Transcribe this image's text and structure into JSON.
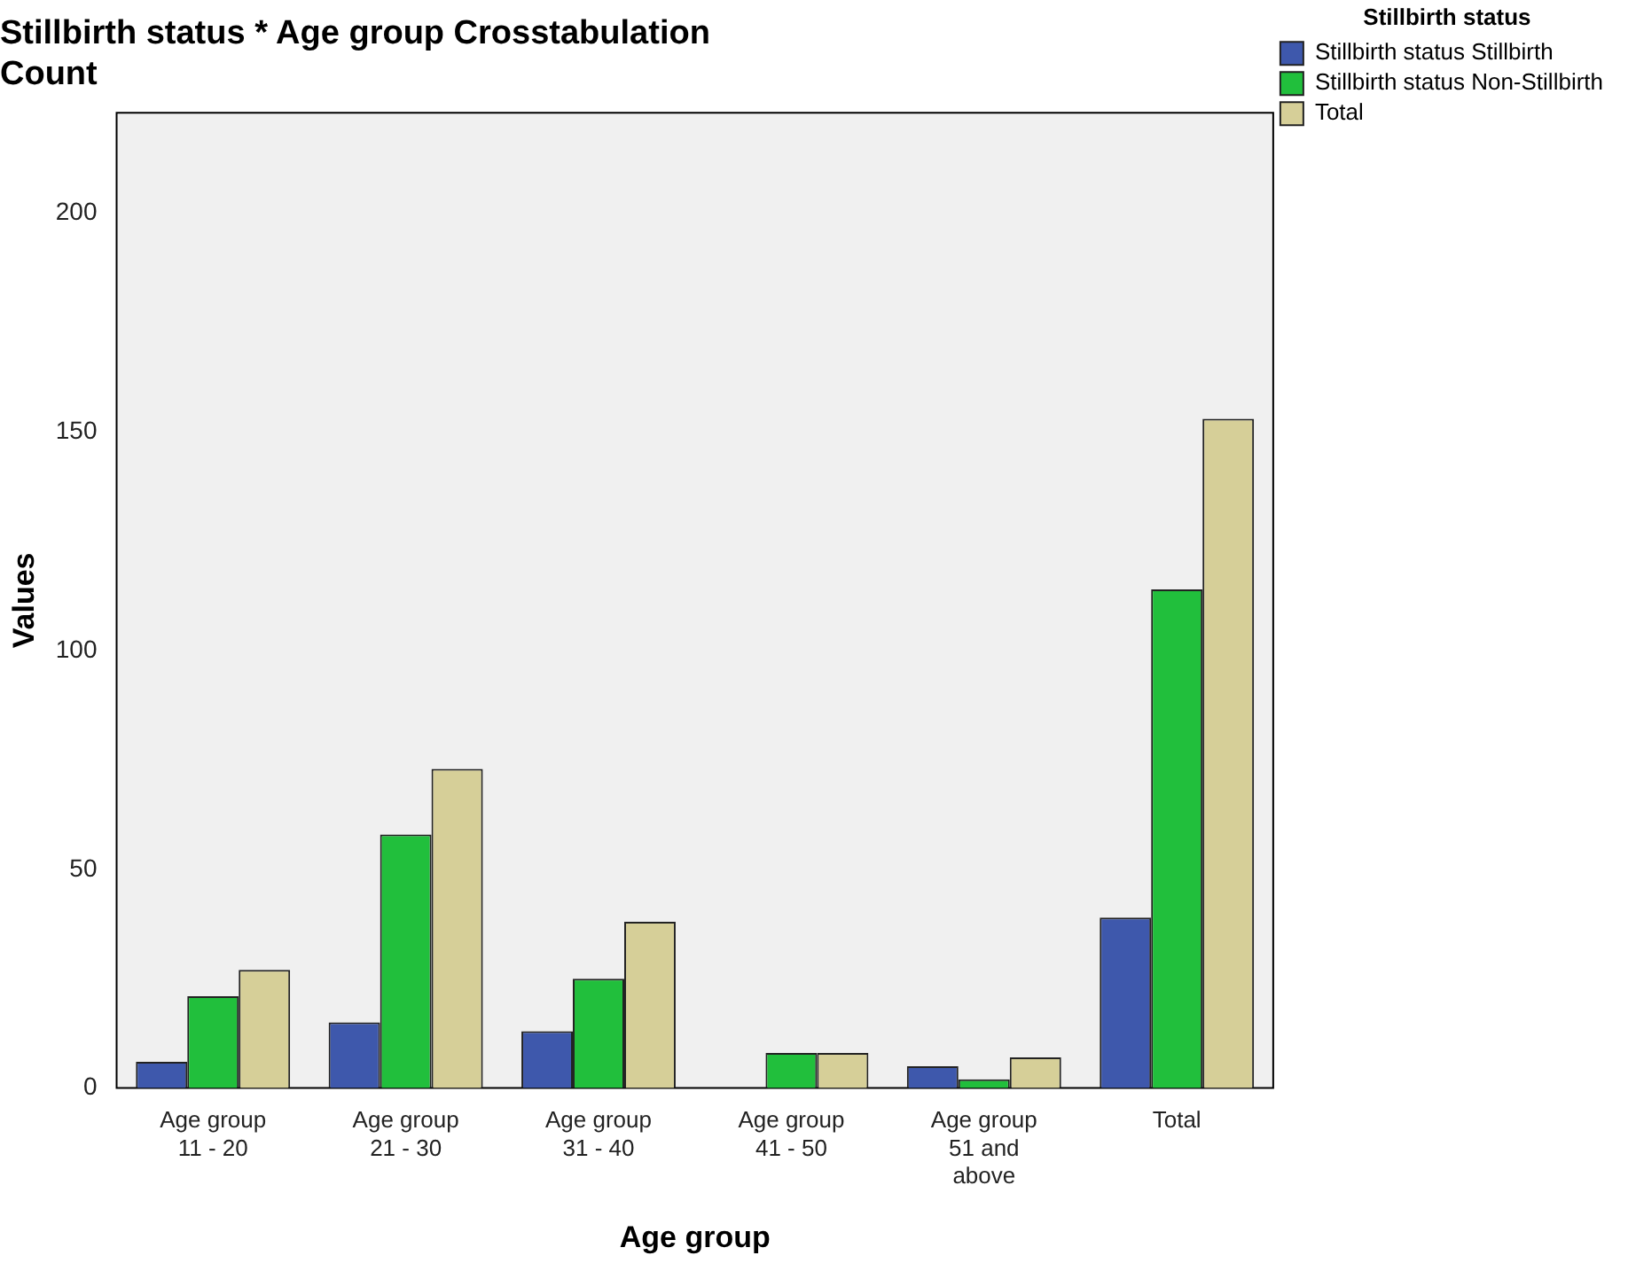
{
  "chart_data": {
    "type": "bar",
    "title": "Stillbirth status * Age group Crosstabulation",
    "subtitle": "Count",
    "xlabel": "Age group",
    "ylabel": "Values",
    "legend_title": "Stillbirth status",
    "legend": "right",
    "categories": [
      "Age group 11 - 20",
      "Age group 21 - 30",
      "Age group 31 - 40",
      "Age group 41 - 50",
      "Age group 51 and above",
      "Total"
    ],
    "series": [
      {
        "name": "Stillbirth status Stillbirth",
        "color": "#3e58ac",
        "values": [
          6,
          15,
          13,
          0,
          5,
          39
        ]
      },
      {
        "name": "Stillbirth status Non-Stillbirth",
        "color": "#21bf3c",
        "values": [
          21,
          58,
          25,
          8,
          2,
          114
        ]
      },
      {
        "name": "Total",
        "color": "#d6cf98",
        "values": [
          27,
          73,
          38,
          8,
          7,
          153
        ]
      }
    ],
    "ylim": [
      0,
      223
    ],
    "yticks": [
      0,
      50,
      100,
      150,
      200
    ],
    "grid": false
  }
}
